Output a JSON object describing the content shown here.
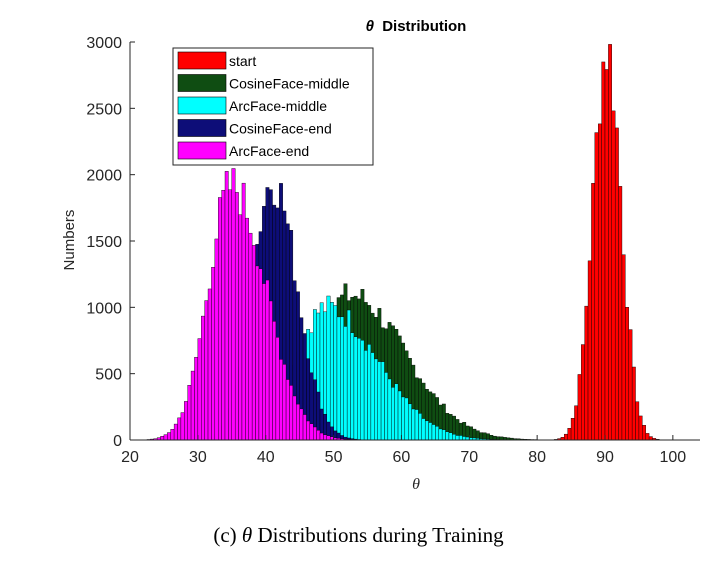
{
  "chart_data": {
    "type": "bar",
    "title_symbol": "θ",
    "title_rest": "Distribution",
    "xlabel": "θ",
    "ylabel": "Numbers",
    "xlim": [
      20,
      104
    ],
    "ylim": [
      0,
      3000
    ],
    "xticks": [
      20,
      30,
      40,
      50,
      60,
      70,
      80,
      90,
      100
    ],
    "yticks": [
      0,
      500,
      1000,
      1500,
      2000,
      2500,
      3000
    ],
    "bin_width": 0.5,
    "legend_position": "top-left",
    "series": [
      {
        "name": "start",
        "color": "#ff0000",
        "peak_x": 90.3,
        "peak_value": 2950,
        "spread_left": 2.1,
        "spread_right": 2.1,
        "range": [
          82.5,
          99
        ]
      },
      {
        "name": "CosineFace-middle",
        "color": "#0f4d12",
        "peak_x": 52.5,
        "peak_value": 1090,
        "spread_left": 5.5,
        "spread_right": 8.0,
        "range": [
          38,
          80
        ]
      },
      {
        "name": "ArcFace-middle",
        "color": "#00ffff",
        "peak_x": 49.0,
        "peak_value": 1000,
        "spread_left": 4.8,
        "spread_right": 7.5,
        "range": [
          36,
          78
        ]
      },
      {
        "name": "CosineFace-end",
        "color": "#0d0d78",
        "peak_x": 41.0,
        "peak_value": 1960,
        "spread_left": 3.0,
        "spread_right": 3.6,
        "range": [
          27,
          62
        ]
      },
      {
        "name": "ArcFace-end",
        "color": "#ff00ff",
        "peak_x": 35.0,
        "peak_value": 1910,
        "spread_left": 3.5,
        "spread_right": 5.0,
        "range": [
          22,
          60
        ]
      }
    ]
  },
  "caption": {
    "prefix": "(c)",
    "symbol": "θ",
    "text": "Distributions during Training"
  }
}
